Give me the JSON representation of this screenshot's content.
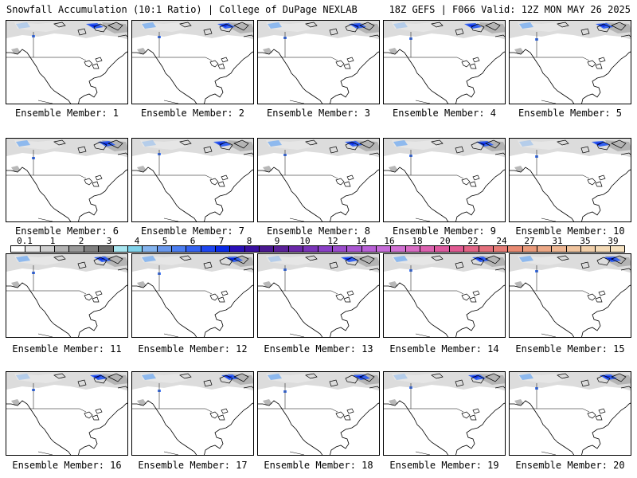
{
  "header": {
    "left": "Snowfall Accumulation (10:1 Ratio) | College of DuPage NEXLAB",
    "right": "18Z GEFS | F066 Valid: 12Z MON MAY 26 2025"
  },
  "members": [
    {
      "label": "Ensemble Member: 1"
    },
    {
      "label": "Ensemble Member: 2"
    },
    {
      "label": "Ensemble Member: 3"
    },
    {
      "label": "Ensemble Member: 4"
    },
    {
      "label": "Ensemble Member: 5"
    },
    {
      "label": "Ensemble Member: 6"
    },
    {
      "label": "Ensemble Member: 7"
    },
    {
      "label": "Ensemble Member: 8"
    },
    {
      "label": "Ensemble Member: 9"
    },
    {
      "label": "Ensemble Member: 10"
    },
    {
      "label": "Ensemble Member: 11"
    },
    {
      "label": "Ensemble Member: 12"
    },
    {
      "label": "Ensemble Member: 13"
    },
    {
      "label": "Ensemble Member: 14"
    },
    {
      "label": "Ensemble Member: 15"
    },
    {
      "label": "Ensemble Member: 16"
    },
    {
      "label": "Ensemble Member: 17"
    },
    {
      "label": "Ensemble Member: 18"
    },
    {
      "label": "Ensemble Member: 19"
    },
    {
      "label": "Ensemble Member: 20"
    }
  ],
  "colorbar": {
    "labels": [
      "0.1",
      "1",
      "2",
      "3",
      "4",
      "5",
      "6",
      "7",
      "8",
      "9",
      "10",
      "12",
      "14",
      "16",
      "18",
      "20",
      "22",
      "24",
      "27",
      "31",
      "35",
      "39"
    ],
    "colors": [
      "#ffffff",
      "#e6e6e6",
      "#cfcfcf",
      "#b4b4b4",
      "#9a9a9a",
      "#808080",
      "#6b6b6b",
      "#a8e6f0",
      "#7fd2ea",
      "#84b4ee",
      "#6a98ec",
      "#4c7ef0",
      "#3462f0",
      "#1e46f0",
      "#0a2ae6",
      "#2a10b8",
      "#3a10a0",
      "#4a1890",
      "#5a2098",
      "#6a28a8",
      "#7a34b8",
      "#8a40c6",
      "#9a4ccc",
      "#aa58d2",
      "#b860d6",
      "#c66cd8",
      "#d070d2",
      "#d86cc4",
      "#dc62b0",
      "#de5aa0",
      "#e05a92",
      "#e26486",
      "#e4707c",
      "#e67c76",
      "#e88a72",
      "#ea9a7a",
      "#eca886",
      "#eeb692",
      "#f0c49e",
      "#f2d0aa",
      "#f4dab6",
      "#f6e2c0"
    ]
  }
}
